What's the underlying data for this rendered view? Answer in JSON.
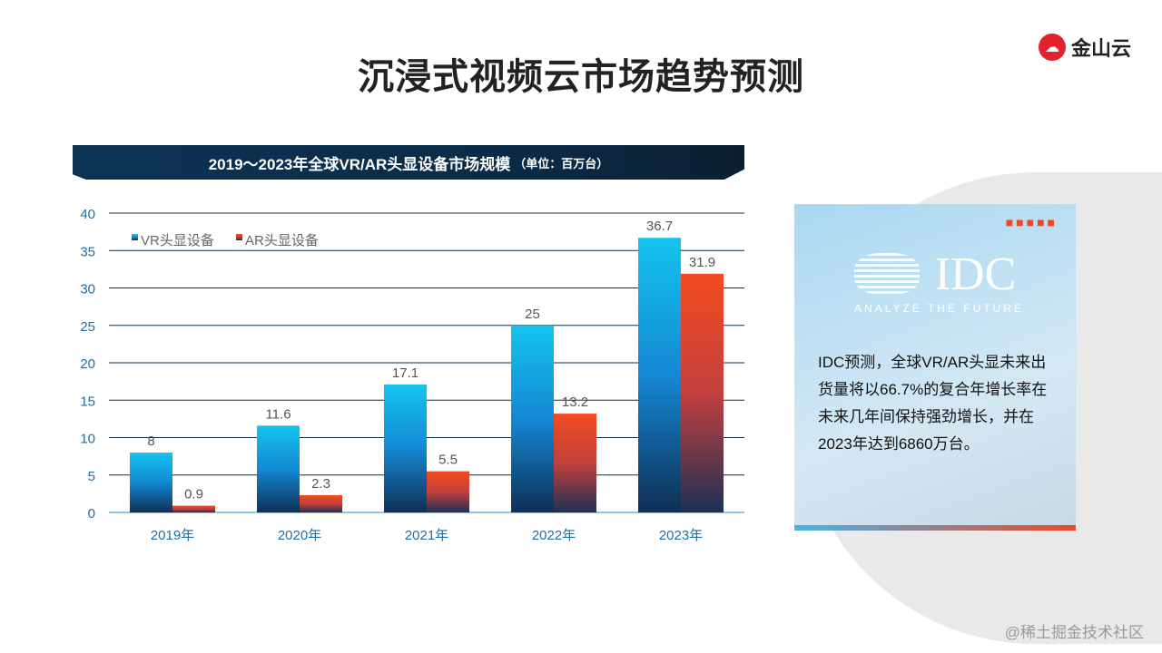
{
  "page": {
    "title": "沉浸式视频云市场趋势预测",
    "logo": "金山云",
    "watermark": "@稀土掘金技术社区"
  },
  "banner": {
    "title": "2019～2023年全球VR/AR头显设备市场规模",
    "unit": "（单位：百万台）"
  },
  "card": {
    "logo_name": "IDC",
    "logo_tagline": "ANALYZE THE FUTURE",
    "text": "IDC预测，全球VR/AR头显未来出货量将以66.7%的复合年增长率在未来几年间保持强劲增长，并在2023年达到6860万台。"
  },
  "chart_data": {
    "type": "bar",
    "title": "2019～2023年全球VR/AR头显设备市场规模（单位：百万台）",
    "categories": [
      "2019年",
      "2020年",
      "2021年",
      "2022年",
      "2023年"
    ],
    "series": [
      {
        "name": "VR头显设备",
        "values": [
          8,
          11.6,
          17.1,
          25,
          36.7
        ],
        "color": "#13b4ea"
      },
      {
        "name": "AR头显设备",
        "values": [
          0.9,
          2.3,
          5.5,
          13.2,
          31.9
        ],
        "color": "#f04e23"
      }
    ],
    "ylim": [
      0,
      40
    ],
    "yticks": [
      0,
      5,
      10,
      15,
      20,
      25,
      30,
      35,
      40
    ],
    "legend": "top-left",
    "grid": true
  }
}
